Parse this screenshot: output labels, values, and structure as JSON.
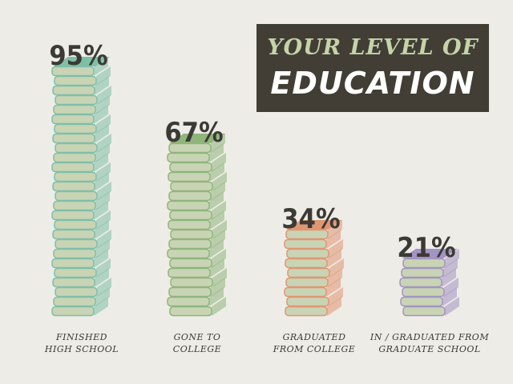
{
  "title": {
    "line1": "YOUR LEVEL OF",
    "line2": "EDUCATION"
  },
  "colors": {
    "background": "#eeece6",
    "title_bg": "#423e36",
    "book_cover": "#c9d4b5",
    "teal": "#7fbfa8",
    "green": "#8fb57b",
    "orange": "#e09673",
    "purple": "#a394c3"
  },
  "chart_data": {
    "type": "bar",
    "title": "YOUR LEVEL OF EDUCATION",
    "categories": [
      [
        "FINISHED",
        "HIGH SCHOOL"
      ],
      [
        "GONE TO",
        "COLLEGE"
      ],
      [
        "GRADUATED",
        "FROM COLLEGE"
      ],
      [
        "IN / GRADUATED FROM",
        "GRADUATE SCHOOL"
      ]
    ],
    "values": [
      95,
      67,
      34,
      21
    ],
    "value_labels": [
      "95%",
      "67%",
      "34%",
      "21%"
    ],
    "accent_colors": [
      "#7fbfa8",
      "#8fb57b",
      "#e09673",
      "#a394c3"
    ],
    "ylim": [
      0,
      100
    ],
    "grid": false,
    "legend": "none"
  }
}
